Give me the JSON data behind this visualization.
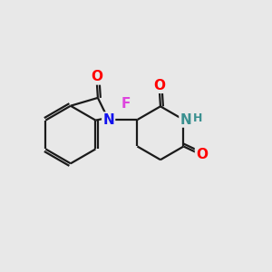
{
  "bg_color": "#e8e8e8",
  "bond_color": "#1a1a1a",
  "bond_width": 1.6,
  "atom_colors": {
    "O": "#ff0000",
    "N_iso": "#1010ee",
    "N_pip": "#3a9090",
    "F": "#dd44dd",
    "H": "#3a9090"
  },
  "font_size_atom": 11,
  "font_size_H": 9
}
